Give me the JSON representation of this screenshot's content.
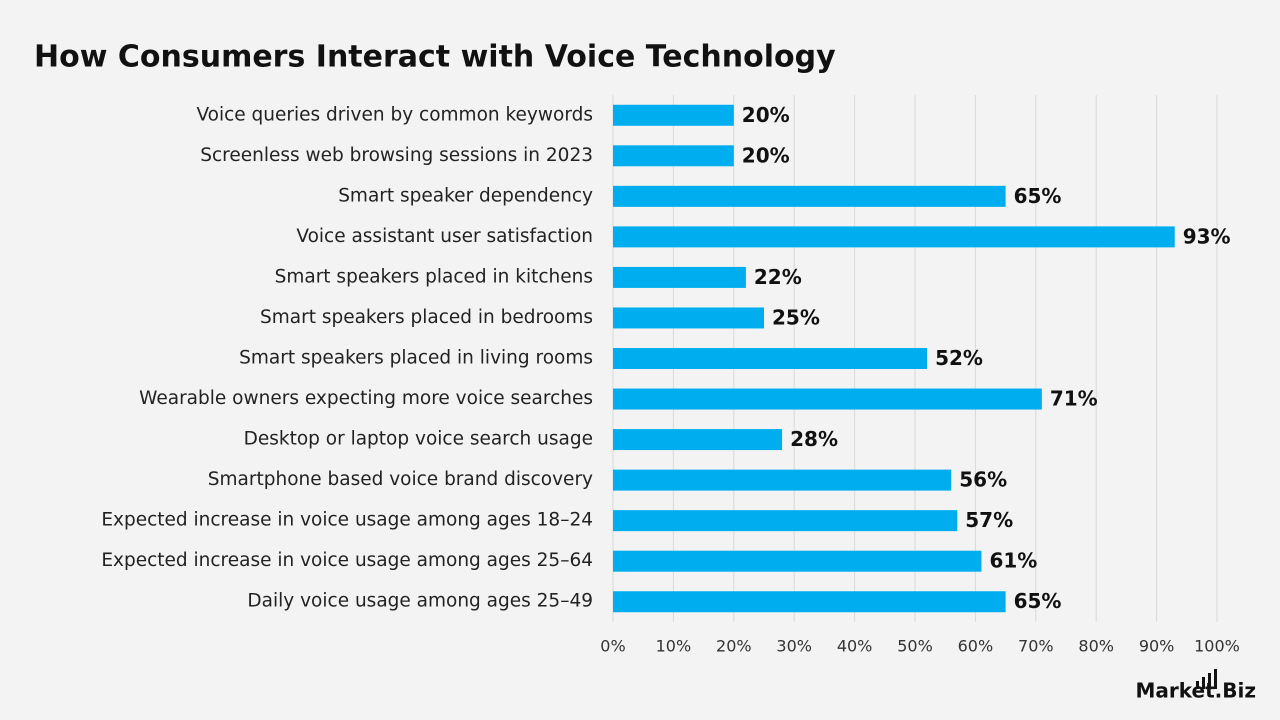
{
  "chart_data": {
    "type": "barh",
    "title": "How Consumers Interact with Voice Technology",
    "categories": [
      "Voice queries driven by common keywords",
      "Screenless web browsing sessions in 2023",
      "Smart speaker dependency",
      "Voice assistant user satisfaction",
      "Smart speakers placed in kitchens",
      "Smart speakers placed in bedrooms",
      "Smart speakers placed in living rooms",
      "Wearable owners expecting more voice searches",
      "Desktop or laptop voice search usage",
      "Smartphone based voice brand discovery",
      "Expected increase in voice usage among ages 18–24",
      "Expected increase in voice usage among ages 25–64",
      "Daily voice usage among ages 25–49"
    ],
    "values": [
      20,
      20,
      65,
      93,
      22,
      25,
      52,
      71,
      28,
      56,
      57,
      61,
      65
    ],
    "value_labels": [
      "20%",
      "20%",
      "65%",
      "93%",
      "22%",
      "25%",
      "52%",
      "71%",
      "28%",
      "56%",
      "57%",
      "61%",
      "65%"
    ],
    "color": "#00aeef",
    "xlim": [
      0,
      100
    ],
    "xticks": [
      {
        "value": 0,
        "label": "0%"
      },
      {
        "value": 10,
        "label": "10%"
      },
      {
        "value": 20,
        "label": "20%"
      },
      {
        "value": 30,
        "label": "30%"
      },
      {
        "value": 40,
        "label": "40%"
      },
      {
        "value": 50,
        "label": "50%"
      },
      {
        "value": 60,
        "label": "60%"
      },
      {
        "value": 70,
        "label": "70%"
      },
      {
        "value": 80,
        "label": "80%"
      },
      {
        "value": 90,
        "label": "90%"
      },
      {
        "value": 100,
        "label": "100%"
      }
    ],
    "grid": true,
    "watermark": "Market.Biz"
  }
}
